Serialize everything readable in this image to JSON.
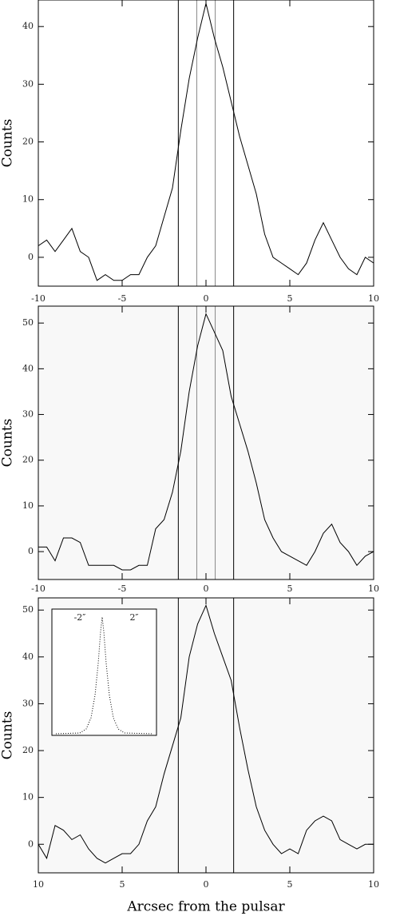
{
  "chart_data": [
    {
      "type": "line",
      "ylabel": "Counts",
      "x": [
        -10,
        -9.5,
        -9,
        -8.5,
        -8,
        -7.5,
        -7,
        -6.5,
        -6,
        -5.5,
        -5,
        -4.5,
        -4,
        -3.5,
        -3,
        -2.5,
        -2,
        -1.5,
        -1,
        -0.5,
        0,
        0.5,
        1,
        1.5,
        2,
        2.5,
        3,
        3.5,
        4,
        4.5,
        5,
        5.5,
        6,
        6.5,
        7,
        7.5,
        8,
        8.5,
        9,
        9.5,
        10
      ],
      "series": [
        {
          "color": "#000000",
          "values": [
            2,
            3,
            1,
            3,
            5,
            1,
            0,
            -4,
            -3,
            -4,
            -4,
            -3,
            -3,
            0,
            2,
            7,
            12,
            22,
            31,
            38,
            44,
            38,
            33,
            27,
            21,
            16,
            11,
            4,
            0,
            -1,
            -2,
            -3,
            -1,
            3,
            6,
            3,
            0,
            -2,
            -3,
            0,
            -1
          ]
        }
      ],
      "vlines": [
        -1.65,
        -0.55,
        0.55,
        1.65
      ],
      "vline_colors": [
        "#000000",
        "#888888",
        "#888888",
        "#000000"
      ],
      "xlim": [
        -10,
        10
      ],
      "ylim": [
        -5,
        44.6
      ],
      "xticks": [
        -10,
        -5,
        0,
        5,
        10
      ],
      "yticks": [
        0,
        10,
        20,
        30,
        40
      ]
    },
    {
      "type": "line",
      "ylabel": "Counts",
      "x": [
        -10,
        -9.5,
        -9,
        -8.5,
        -8,
        -7.5,
        -7,
        -6.5,
        -6,
        -5.5,
        -5,
        -4.5,
        -4,
        -3.5,
        -3,
        -2.5,
        -2,
        -1.5,
        -1,
        -0.5,
        0,
        0.5,
        1,
        1.5,
        2,
        2.5,
        3,
        3.5,
        4,
        4.5,
        5,
        5.5,
        6,
        6.5,
        7,
        7.5,
        8,
        8.5,
        9,
        9.5,
        10
      ],
      "series": [
        {
          "color": "#000000",
          "values": [
            1,
            1,
            -2,
            3,
            3,
            2,
            -3,
            -3,
            -3,
            -3,
            -4,
            -4,
            -3,
            -3,
            5,
            7,
            13,
            22,
            35,
            45,
            52,
            48,
            44,
            34,
            28,
            22,
            15,
            7,
            3,
            0,
            -1,
            -2,
            -3,
            0,
            4,
            6,
            2,
            0,
            -3,
            -1,
            0
          ]
        }
      ],
      "vlines": [
        -1.65,
        -0.55,
        0.55,
        1.65
      ],
      "vline_colors": [
        "#000000",
        "#888888",
        "#888888",
        "#000000"
      ],
      "xlim": [
        -10,
        10
      ],
      "ylim": [
        -6.1,
        53.7
      ],
      "xticks": [
        -10,
        -5,
        0,
        5,
        10
      ],
      "yticks": [
        0,
        10,
        20,
        30,
        40,
        50
      ]
    },
    {
      "type": "line",
      "ylabel": "Counts",
      "xlabel": "Arcsec from the pulsar",
      "x": [
        -10,
        -9.5,
        -9,
        -8.5,
        -8,
        -7.5,
        -7,
        -6.5,
        -6,
        -5.5,
        -5,
        -4.5,
        -4,
        -3.5,
        -3,
        -2.5,
        -2,
        -1.5,
        -1,
        -0.5,
        0,
        0.5,
        1,
        1.5,
        2,
        2.5,
        3,
        3.5,
        4,
        4.5,
        5,
        5.5,
        6,
        6.5,
        7,
        7.5,
        8,
        8.5,
        9,
        9.5,
        10
      ],
      "series": [
        {
          "color": "#000000",
          "values": [
            0,
            -3,
            4,
            3,
            1,
            2,
            -1,
            -3,
            -4,
            -3,
            -2,
            -2,
            0,
            5,
            8,
            15,
            21,
            27,
            40,
            47,
            51,
            45,
            40,
            35,
            25,
            16,
            8,
            3,
            0,
            -2,
            -1,
            -2,
            3,
            5,
            6,
            5,
            1,
            0,
            -1,
            0,
            0
          ]
        }
      ],
      "vlines": [
        -1.65,
        1.65
      ],
      "vline_colors": [
        "#000000",
        "#000000"
      ],
      "xlim": [
        -10,
        10
      ],
      "ylim": [
        -6.1,
        52.6
      ],
      "xticks": [
        {
          "value": -10,
          "label": "10"
        },
        {
          "value": -5,
          "label": "5"
        },
        0,
        5,
        10
      ],
      "yticks": [
        0,
        10,
        20,
        30,
        40,
        50
      ],
      "inset_labels": [
        "-2″",
        "2″"
      ]
    }
  ]
}
